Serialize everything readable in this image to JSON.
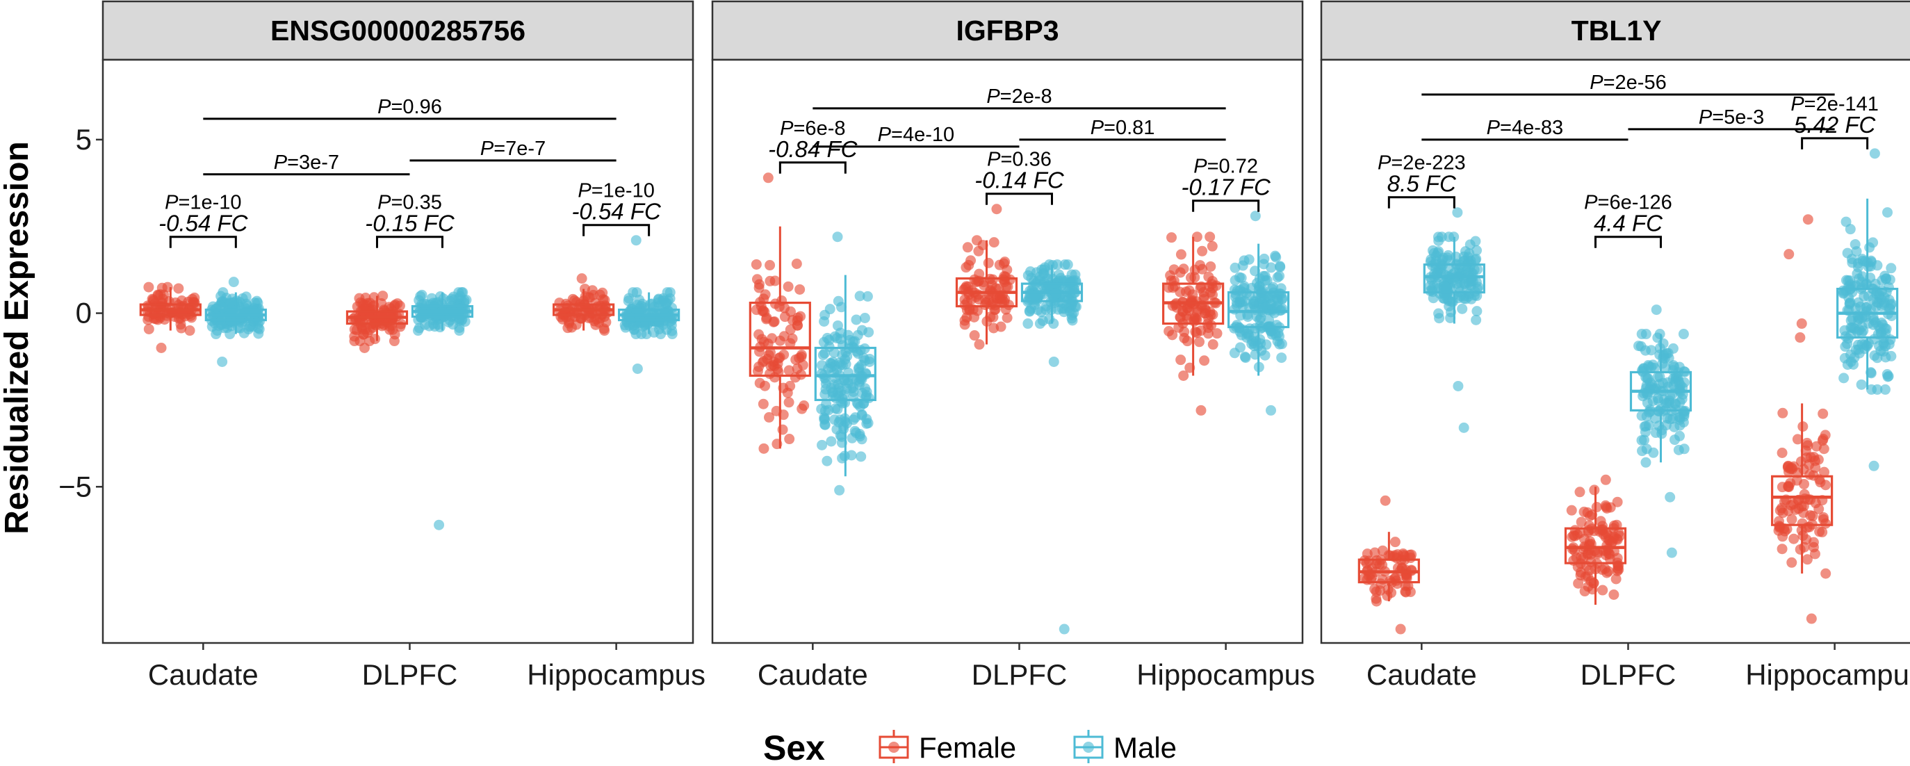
{
  "chart_data": {
    "type": "boxplot",
    "ylabel": "Residualized Expression",
    "ylim": [
      -9.5,
      7.3
    ],
    "yticks": [
      -5,
      0,
      5
    ],
    "categories": [
      "Caudate",
      "DLPFC",
      "Hippocampus"
    ],
    "groups": [
      "Female",
      "Male"
    ],
    "legend": {
      "title": "Sex",
      "position": "bottom",
      "entries": [
        {
          "label": "Female",
          "color": "#E64B35"
        },
        {
          "label": "Male",
          "color": "#4DBBD5"
        }
      ]
    },
    "panels": [
      {
        "title": "ENSG00000285756",
        "boxes": [
          {
            "region": "Caudate",
            "sex": "Female",
            "q1": -0.05,
            "median": 0.1,
            "q3": 0.25,
            "wlo": -0.5,
            "whi": 0.75,
            "n": 80,
            "sd": 0.28,
            "outliers": [
              -1.0
            ]
          },
          {
            "region": "Caudate",
            "sex": "Male",
            "q1": -0.2,
            "median": -0.05,
            "q3": 0.1,
            "wlo": -0.6,
            "whi": 0.6,
            "n": 140,
            "sd": 0.28,
            "outliers": [
              -1.4,
              0.9
            ]
          },
          {
            "region": "DLPFC",
            "sex": "Female",
            "q1": -0.3,
            "median": -0.12,
            "q3": 0.05,
            "wlo": -0.8,
            "whi": 0.5,
            "n": 100,
            "sd": 0.3,
            "outliers": [
              -1.0
            ]
          },
          {
            "region": "DLPFC",
            "sex": "Male",
            "q1": -0.1,
            "median": 0.05,
            "q3": 0.2,
            "wlo": -0.5,
            "whi": 0.6,
            "n": 130,
            "sd": 0.25,
            "outliers": [
              -6.1
            ]
          },
          {
            "region": "Hippocampus",
            "sex": "Female",
            "q1": -0.05,
            "median": 0.1,
            "q3": 0.25,
            "wlo": -0.5,
            "whi": 0.7,
            "n": 80,
            "sd": 0.28,
            "outliers": [
              1.0
            ]
          },
          {
            "region": "Hippocampus",
            "sex": "Male",
            "q1": -0.2,
            "median": -0.05,
            "q3": 0.1,
            "wlo": -0.6,
            "whi": 0.6,
            "n": 130,
            "sd": 0.3,
            "outliers": [
              2.1,
              -1.6
            ]
          }
        ],
        "pair_annotations": [
          {
            "region": "Caudate",
            "p": "1e-10",
            "fc": "-0.54 FC"
          },
          {
            "region": "DLPFC",
            "p": "0.35",
            "fc": "-0.15 FC"
          },
          {
            "region": "Hippocampus",
            "p": "1e-10",
            "fc": "-0.54 FC"
          }
        ],
        "region_comparisons": [
          {
            "from": "Caudate",
            "to": "DLPFC",
            "p": "3e-7",
            "y": 4.0
          },
          {
            "from": "DLPFC",
            "to": "Hippocampus",
            "p": "7e-7",
            "y": 4.4
          },
          {
            "from": "Caudate",
            "to": "Hippocampus",
            "p": "0.96",
            "y": 5.6
          }
        ]
      },
      {
        "title": "IGFBP3",
        "boxes": [
          {
            "region": "Caudate",
            "sex": "Female",
            "q1": -1.8,
            "median": -1.0,
            "q3": 0.3,
            "wlo": -3.9,
            "whi": 2.5,
            "n": 90,
            "sd": 1.3,
            "outliers": [
              3.9
            ]
          },
          {
            "region": "Caudate",
            "sex": "Male",
            "q1": -2.5,
            "median": -1.8,
            "q3": -1.0,
            "wlo": -4.7,
            "whi": 1.1,
            "n": 160,
            "sd": 1.1,
            "outliers": [
              2.2,
              -5.1
            ]
          },
          {
            "region": "DLPFC",
            "sex": "Female",
            "q1": 0.2,
            "median": 0.6,
            "q3": 1.0,
            "wlo": -0.9,
            "whi": 2.1,
            "n": 90,
            "sd": 0.6,
            "outliers": [
              3.0
            ]
          },
          {
            "region": "DLPFC",
            "sex": "Male",
            "q1": 0.35,
            "median": 0.6,
            "q3": 0.85,
            "wlo": -0.3,
            "whi": 1.4,
            "n": 140,
            "sd": 0.45,
            "outliers": [
              -1.4,
              -9.1
            ]
          },
          {
            "region": "Hippocampus",
            "sex": "Female",
            "q1": -0.3,
            "median": 0.3,
            "q3": 0.85,
            "wlo": -1.8,
            "whi": 2.2,
            "n": 100,
            "sd": 0.8,
            "outliers": [
              -2.8
            ]
          },
          {
            "region": "Hippocampus",
            "sex": "Male",
            "q1": -0.4,
            "median": 0.05,
            "q3": 0.6,
            "wlo": -1.8,
            "whi": 2.0,
            "n": 160,
            "sd": 0.75,
            "outliers": [
              2.8,
              -2.8
            ]
          }
        ],
        "pair_annotations": [
          {
            "region": "Caudate",
            "p": "6e-8",
            "fc": "-0.84 FC"
          },
          {
            "region": "DLPFC",
            "p": "0.36",
            "fc": "-0.14 FC"
          },
          {
            "region": "Hippocampus",
            "p": "0.72",
            "fc": "-0.17 FC"
          }
        ],
        "region_comparisons": [
          {
            "from": "Caudate",
            "to": "DLPFC",
            "p": "4e-10",
            "y": 4.8
          },
          {
            "from": "DLPFC",
            "to": "Hippocampus",
            "p": "0.81",
            "y": 5.0
          },
          {
            "from": "Caudate",
            "to": "Hippocampus",
            "p": "2e-8",
            "y": 5.9
          }
        ]
      },
      {
        "title": "TBL1Y",
        "boxes": [
          {
            "region": "Caudate",
            "sex": "Female",
            "q1": -7.75,
            "median": -7.45,
            "q3": -7.1,
            "wlo": -8.3,
            "whi": -6.3,
            "n": 70,
            "sd": 0.35,
            "outliers": [
              -5.4,
              -9.1
            ]
          },
          {
            "region": "Caudate",
            "sex": "Male",
            "q1": 0.6,
            "median": 1.05,
            "q3": 1.4,
            "wlo": -0.3,
            "whi": 2.2,
            "n": 150,
            "sd": 0.55,
            "outliers": [
              2.9,
              -2.1,
              -3.3
            ]
          },
          {
            "region": "DLPFC",
            "sex": "Female",
            "q1": -7.2,
            "median": -6.75,
            "q3": -6.2,
            "wlo": -8.4,
            "whi": -5.0,
            "n": 110,
            "sd": 0.6,
            "outliers": [
              -4.8
            ]
          },
          {
            "region": "DLPFC",
            "sex": "Male",
            "q1": -2.8,
            "median": -2.25,
            "q3": -1.7,
            "wlo": -4.3,
            "whi": -0.6,
            "n": 140,
            "sd": 0.8,
            "outliers": [
              0.1,
              -5.3,
              -6.9
            ]
          },
          {
            "region": "Hippocampus",
            "sex": "Female",
            "q1": -6.1,
            "median": -5.3,
            "q3": -4.7,
            "wlo": -7.5,
            "whi": -2.6,
            "n": 100,
            "sd": 1.0,
            "outliers": [
              2.7,
              1.7,
              -0.3,
              -0.7,
              -8.8
            ]
          },
          {
            "region": "Hippocampus",
            "sex": "Male",
            "q1": -0.7,
            "median": 0.0,
            "q3": 0.7,
            "wlo": -2.2,
            "whi": 3.3,
            "n": 170,
            "sd": 1.0,
            "outliers": [
              4.6,
              -4.4
            ]
          }
        ],
        "pair_annotations": [
          {
            "region": "Caudate",
            "p": "2e-223",
            "fc": "8.5 FC"
          },
          {
            "region": "DLPFC",
            "p": "6e-126",
            "fc": "4.4 FC"
          },
          {
            "region": "Hippocampus",
            "p": "2e-141",
            "fc": "5.42 FC"
          }
        ],
        "region_comparisons": [
          {
            "from": "Caudate",
            "to": "DLPFC",
            "p": "4e-83",
            "y": 5.0
          },
          {
            "from": "DLPFC",
            "to": "Hippocampus",
            "p": "5e-3",
            "y": 5.3
          },
          {
            "from": "Caudate",
            "to": "Hippocampus",
            "p": "2e-56",
            "y": 6.3
          }
        ]
      }
    ]
  }
}
